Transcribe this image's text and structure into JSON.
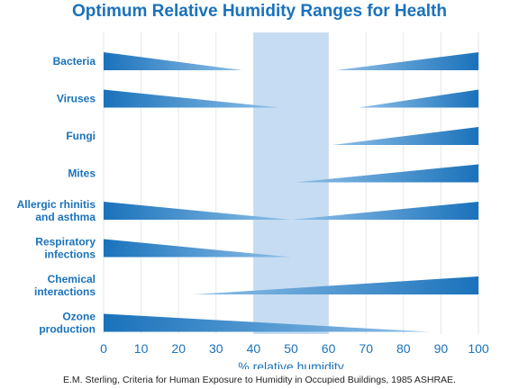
{
  "chart_data": {
    "type": "wedge-bands",
    "title": "Optimum Relative Humidity Ranges for Health",
    "xlabel": "% relative humidity",
    "xlim": [
      0,
      100
    ],
    "xticks": [
      "0",
      "10",
      "20",
      "30",
      "40",
      "50",
      "60",
      "70",
      "80",
      "90",
      "100"
    ],
    "optimum_zone": [
      40,
      60
    ],
    "source": "E.M. Sterling, Criteria for Human Exposure to Humidity in Occupied Buildings, 1985 ASHRAE.",
    "rows": [
      {
        "label": [
          "Bacteria"
        ],
        "left_end": 37,
        "right_start": 62
      },
      {
        "label": [
          "Viruses"
        ],
        "left_end": 47,
        "right_start": 68
      },
      {
        "label": [
          "Fungi"
        ],
        "left_end": null,
        "right_start": 61
      },
      {
        "label": [
          "Mites"
        ],
        "left_end": null,
        "right_start": 51
      },
      {
        "label": [
          "Allergic rhinitis",
          "and asthma"
        ],
        "left_end": 50,
        "right_start": 50
      },
      {
        "label": [
          "Respiratory",
          "infections"
        ],
        "left_end": 50,
        "right_start": null
      },
      {
        "label": [
          "Chemical",
          "interactions"
        ],
        "left_end": null,
        "right_start": 24
      },
      {
        "label": [
          "Ozone",
          "production"
        ],
        "left_end": 87,
        "right_start": null
      }
    ],
    "colors": {
      "band": "#1a72bb",
      "band_light": "#8fc0e8",
      "zone": "#c6dcf2",
      "text": "#1a72bb"
    }
  }
}
